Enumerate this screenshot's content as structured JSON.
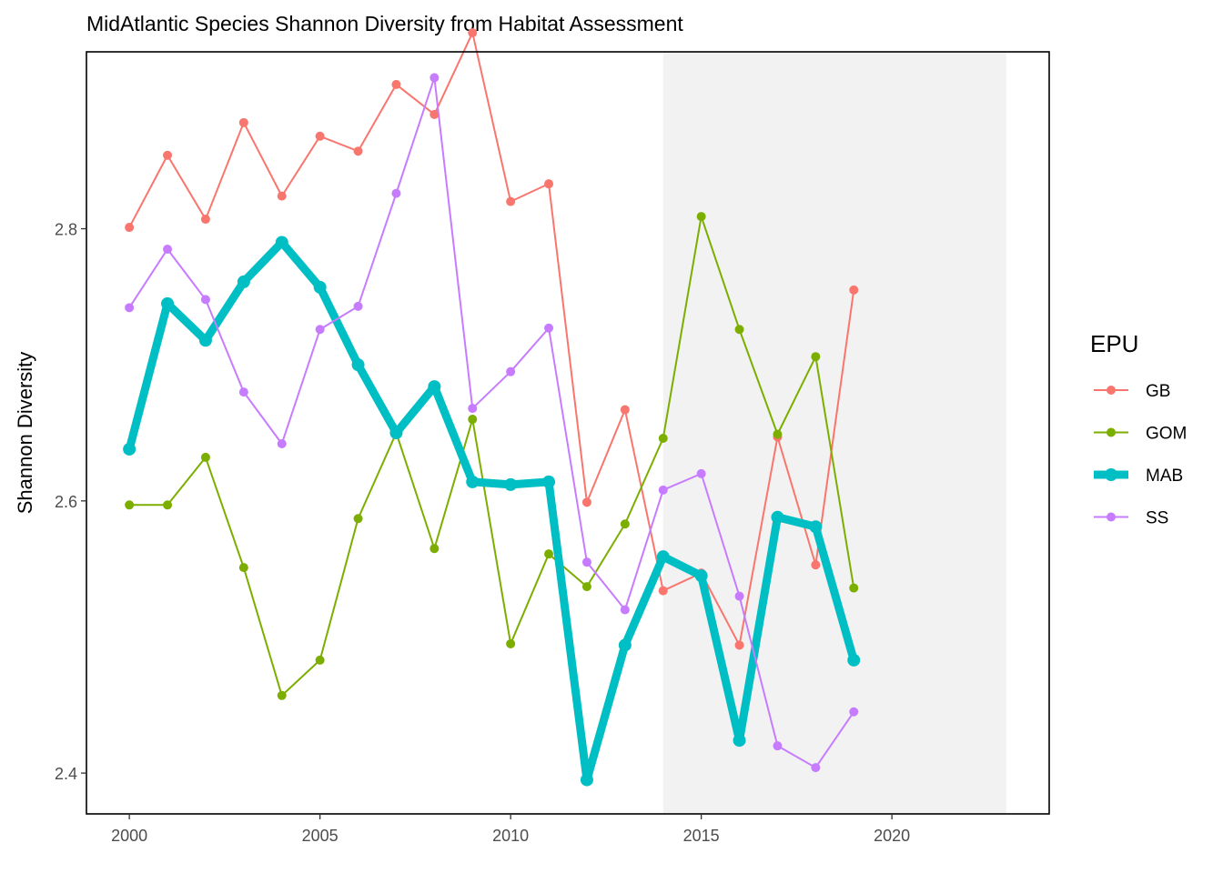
{
  "chart_data": {
    "type": "line",
    "title": "MidAtlantic Species Shannon Diversity from Habitat Assessment",
    "xlabel": "",
    "ylabel": "Shannon Diversity",
    "x": [
      2000,
      2001,
      2002,
      2003,
      2004,
      2005,
      2006,
      2007,
      2008,
      2009,
      2010,
      2011,
      2012,
      2013,
      2014,
      2015,
      2016,
      2017,
      2018,
      2019
    ],
    "xlim": [
      1998.875,
      2024.125
    ],
    "ylim": [
      2.37,
      2.93
    ],
    "x_ticks": [
      2000,
      2005,
      2010,
      2015,
      2020
    ],
    "y_ticks": [
      2.4,
      2.6,
      2.8
    ],
    "y_tick_labels": [
      "2.4",
      "2.6",
      "2.8"
    ],
    "grid": false,
    "shaded_region": {
      "x_start": 2014,
      "x_end": 2023,
      "color": "#f2f2f2"
    },
    "legend": {
      "title": "EPU",
      "position": "right"
    },
    "series": [
      {
        "name": "GB",
        "color": "#F8766D",
        "highlight": false,
        "values": [
          2.801,
          2.854,
          2.807,
          2.878,
          2.824,
          2.868,
          2.857,
          2.906,
          2.884,
          2.944,
          2.82,
          2.833,
          2.599,
          2.667,
          2.534,
          2.547,
          2.494,
          2.647,
          2.553,
          2.755
        ]
      },
      {
        "name": "GOM",
        "color": "#7CAE00",
        "highlight": false,
        "values": [
          2.597,
          2.597,
          2.632,
          2.551,
          2.457,
          2.483,
          2.587,
          2.65,
          2.565,
          2.66,
          2.495,
          2.561,
          2.537,
          2.583,
          2.646,
          2.809,
          2.726,
          2.649,
          2.706,
          2.536
        ]
      },
      {
        "name": "MAB",
        "color": "#00BFC4",
        "highlight": true,
        "values": [
          2.638,
          2.745,
          2.718,
          2.761,
          2.79,
          2.757,
          2.7,
          2.65,
          2.684,
          2.614,
          2.612,
          2.614,
          2.395,
          2.494,
          2.559,
          2.545,
          2.424,
          2.588,
          2.581,
          2.483
        ]
      },
      {
        "name": "SS",
        "color": "#C77CFF",
        "highlight": false,
        "values": [
          2.742,
          2.785,
          2.748,
          2.68,
          2.642,
          2.726,
          2.743,
          2.826,
          2.911,
          2.668,
          2.695,
          2.727,
          2.555,
          2.52,
          2.608,
          2.62,
          2.53,
          2.42,
          2.404,
          2.445
        ]
      }
    ]
  }
}
